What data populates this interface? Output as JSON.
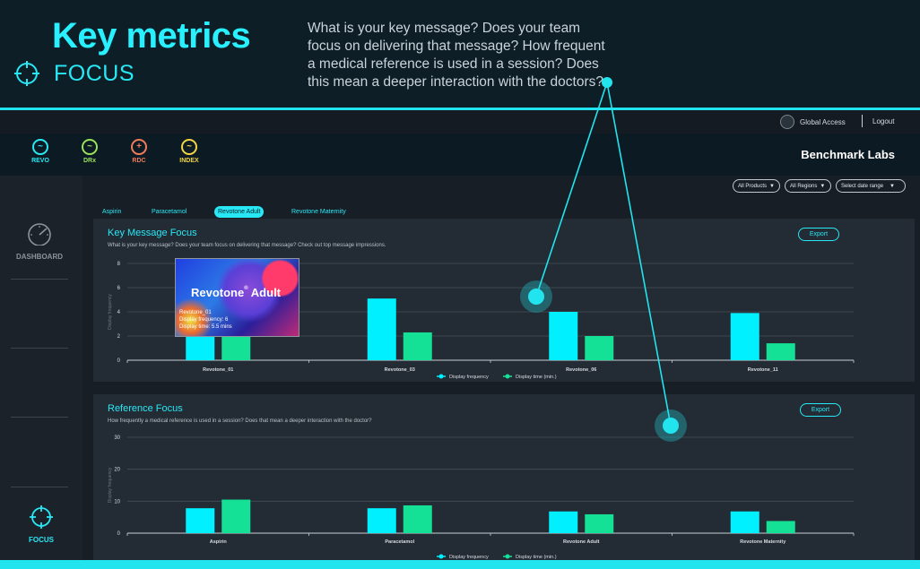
{
  "header": {
    "title": "Key metrics",
    "subtitle": "FOCUS",
    "intro": "What is your key message? Does your team focus on delivering that message? How frequent a medical reference is used in a session? Does this mean a deeper interaction with the doctors?"
  },
  "topbar": {
    "account_label": "Global Access",
    "logout_label": "Logout"
  },
  "apps": [
    {
      "label": "REVO",
      "color": "#28e8f5",
      "icon": "revo-logo-icon"
    },
    {
      "label": "DRx",
      "color": "#9be25a",
      "icon": "drx-logo-icon"
    },
    {
      "label": "RDC",
      "color": "#f07c5a",
      "icon": "rdc-logo-icon"
    },
    {
      "label": "INDEX",
      "color": "#f2d444",
      "icon": "index-logo-icon"
    }
  ],
  "brand": "Benchmark Labs",
  "sidebar": {
    "dashboard_label": "DASHBOARD",
    "focus_label": "FOCUS"
  },
  "filters": {
    "products": "All Products",
    "regions": "All Regions",
    "date": "Select date range"
  },
  "tabs": [
    {
      "label": "Aspirin",
      "active": false
    },
    {
      "label": "Paracetamol",
      "active": false
    },
    {
      "label": "Revotone Adult",
      "active": true
    },
    {
      "label": "Revotone Maternity",
      "active": false
    }
  ],
  "colors": {
    "accent": "#28e8f5",
    "frequency": "#00f0ff",
    "time": "#14e096"
  },
  "key_message_panel": {
    "title": "Key Message Focus",
    "subtitle": "What is your key message? Does your team focus on delivering that message? Check out top message impressions.",
    "export_label": "Export"
  },
  "reference_panel": {
    "title": "Reference Focus",
    "subtitle": "How frequently a medical reference is used in a session? Does that mean a deeper interaction with the doctor?",
    "export_label": "Export"
  },
  "tooltip": {
    "image_title": "Revotone",
    "image_title_suffix": "Adult",
    "name": "Revotone_01",
    "frequency_line": "Display frequency: 6",
    "time_line": "Display time: 5.5 mins"
  },
  "chart_data": [
    {
      "type": "bar",
      "ylabel": "Display frequency",
      "ylim": [
        0,
        8
      ],
      "yticks": [
        0,
        2,
        4,
        6,
        8
      ],
      "categories": [
        "Revotone_01",
        "Revotone_03",
        "Revotone_06",
        "Revotone_11"
      ],
      "series": [
        {
          "name": "Display frequency",
          "values": [
            6,
            5.1,
            4,
            3.9
          ]
        },
        {
          "name": "Display time (min.)",
          "values": [
            5.5,
            2.3,
            2.0,
            1.4
          ]
        }
      ],
      "legend": "bottom-center",
      "grid": true
    },
    {
      "type": "bar",
      "ylabel": "Display frequency",
      "ylim": [
        0,
        30
      ],
      "yticks": [
        0,
        10,
        20,
        30
      ],
      "categories": [
        "Aspirin",
        "Paracetamol",
        "Revotone Adult",
        "Revotone Maternity"
      ],
      "series": [
        {
          "name": "Display frequency",
          "values": [
            7.8,
            7.8,
            6.8,
            6.8
          ]
        },
        {
          "name": "Display time (min.)",
          "values": [
            10.5,
            8.7,
            5.9,
            3.8
          ]
        }
      ],
      "legend": "bottom-center",
      "grid": true
    }
  ]
}
